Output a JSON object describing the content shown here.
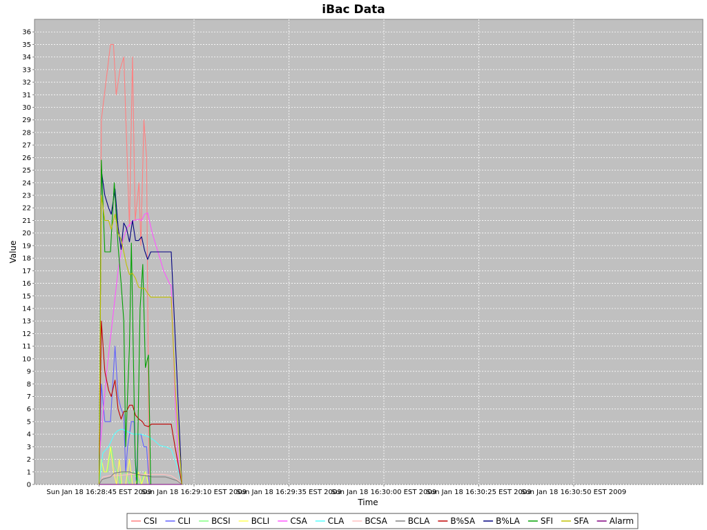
{
  "chart_data": {
    "type": "line",
    "title": "iBac Data",
    "xlabel": "Time",
    "ylabel": "Value",
    "ylim": [
      0,
      37
    ],
    "yticks": [
      0,
      1,
      2,
      3,
      4,
      5,
      6,
      7,
      8,
      9,
      10,
      11,
      12,
      13,
      14,
      15,
      16,
      17,
      18,
      19,
      20,
      21,
      22,
      23,
      24,
      25,
      26,
      27,
      28,
      29,
      30,
      31,
      32,
      33,
      34,
      35,
      36
    ],
    "xlim_seconds": [
      -17,
      159
    ],
    "xticks": [
      {
        "t": 0,
        "label": "Sun Jan 18 16:28:45 EST 2009"
      },
      {
        "t": 25,
        "label": "Sun Jan 18 16:29:10 EST 2009"
      },
      {
        "t": 50,
        "label": "Sun Jan 18 16:29:35 EST 2009"
      },
      {
        "t": 75,
        "label": "Sun Jan 18 16:30:00 EST 2009"
      },
      {
        "t": 100,
        "label": "Sun Jan 18 16:30:25 EST 2009"
      },
      {
        "t": 125,
        "label": "Sun Jan 18 16:30:50 EST 2009"
      }
    ],
    "grid": true,
    "legend_position": "bottom",
    "series": [
      {
        "name": "CSI",
        "color": "#ff8080",
        "points": [
          [
            0,
            0
          ],
          [
            0.6,
            29
          ],
          [
            3,
            35
          ],
          [
            3.8,
            35
          ],
          [
            4.5,
            31
          ],
          [
            5.5,
            33
          ],
          [
            6.5,
            34
          ],
          [
            8,
            20.5
          ],
          [
            8.8,
            34
          ],
          [
            9.5,
            21
          ],
          [
            10.5,
            24
          ],
          [
            11,
            19
          ],
          [
            11.8,
            29
          ],
          [
            12.5,
            26
          ],
          [
            13.2,
            0
          ]
        ]
      },
      {
        "name": "CLI",
        "color": "#6060ff",
        "points": [
          [
            0,
            0
          ],
          [
            0.6,
            8
          ],
          [
            1.5,
            5
          ],
          [
            3,
            5
          ],
          [
            4.2,
            11
          ],
          [
            5,
            7
          ],
          [
            5.8,
            6
          ],
          [
            6.5,
            5.5
          ],
          [
            7,
            1
          ],
          [
            7.5,
            3
          ],
          [
            8.5,
            5
          ],
          [
            9.2,
            5
          ],
          [
            9.8,
            0
          ],
          [
            10.3,
            4
          ],
          [
            11,
            4
          ],
          [
            11.8,
            3
          ],
          [
            12.5,
            3
          ],
          [
            13.2,
            0
          ]
        ]
      },
      {
        "name": "BCSI",
        "color": "#80ff80",
        "points": [
          [
            0,
            0
          ],
          [
            0.6,
            2
          ],
          [
            1.2,
            1
          ],
          [
            2.2,
            1
          ],
          [
            3.2,
            3
          ],
          [
            4,
            1.5
          ],
          [
            4.8,
            1
          ],
          [
            5.5,
            0
          ],
          [
            6.2,
            1
          ],
          [
            7,
            1
          ],
          [
            8,
            0
          ],
          [
            9,
            1
          ],
          [
            10,
            0.5
          ],
          [
            11,
            0
          ],
          [
            12,
            1
          ],
          [
            13,
            0
          ]
        ]
      },
      {
        "name": "BCLI",
        "color": "#ffff55",
        "points": [
          [
            0,
            0
          ],
          [
            0.6,
            2
          ],
          [
            1.3,
            1
          ],
          [
            2,
            1
          ],
          [
            3,
            3
          ],
          [
            3.8,
            1
          ],
          [
            4.6,
            0
          ],
          [
            5.3,
            2
          ],
          [
            6,
            0
          ],
          [
            7,
            0
          ],
          [
            8,
            2
          ],
          [
            8.8,
            0
          ],
          [
            9.6,
            0
          ],
          [
            10.4,
            1
          ],
          [
            11.2,
            0
          ],
          [
            12.2,
            1
          ],
          [
            13,
            0
          ]
        ]
      },
      {
        "name": "CSA",
        "color": "#ff55ff",
        "points": [
          [
            0,
            2
          ],
          [
            2,
            9
          ],
          [
            3.5,
            13
          ],
          [
            5,
            17
          ],
          [
            6.3,
            19.5
          ],
          [
            7.5,
            20.5
          ],
          [
            9,
            21
          ],
          [
            10.5,
            21.1
          ],
          [
            11.2,
            21
          ],
          [
            12,
            21.5
          ],
          [
            12.8,
            21.6
          ],
          [
            14,
            20
          ],
          [
            15.5,
            18.5
          ],
          [
            17,
            17
          ],
          [
            18.5,
            16
          ],
          [
            19,
            15.8
          ],
          [
            20,
            7
          ],
          [
            21,
            1
          ],
          [
            21.8,
            0
          ]
        ]
      },
      {
        "name": "CLA",
        "color": "#55ffff",
        "points": [
          [
            0,
            0
          ],
          [
            1,
            2.5
          ],
          [
            2.5,
            3
          ],
          [
            4,
            4
          ],
          [
            5,
            4.3
          ],
          [
            6,
            4.4
          ],
          [
            7.5,
            4.2
          ],
          [
            9,
            4
          ],
          [
            11,
            4
          ],
          [
            13,
            3.8
          ],
          [
            14.5,
            3.5
          ],
          [
            16,
            3.1
          ],
          [
            17.5,
            3
          ],
          [
            19,
            2.8
          ],
          [
            20.5,
            1.5
          ],
          [
            21.8,
            0
          ]
        ]
      },
      {
        "name": "BCSA",
        "color": "#ffc0c0",
        "points": [
          [
            0,
            0
          ],
          [
            1,
            0.6
          ],
          [
            3,
            0.7
          ],
          [
            5,
            0.7
          ],
          [
            8,
            0.8
          ],
          [
            11,
            0.8
          ],
          [
            14,
            0.8
          ],
          [
            17,
            0.8
          ],
          [
            19,
            0.7
          ],
          [
            20.5,
            0.4
          ],
          [
            21.8,
            0
          ]
        ]
      },
      {
        "name": "BCLA",
        "color": "#808080",
        "points": [
          [
            0,
            0
          ],
          [
            0.8,
            0.4
          ],
          [
            2,
            0.5
          ],
          [
            3,
            0.6
          ],
          [
            4,
            0.9
          ],
          [
            6,
            1
          ],
          [
            8,
            1
          ],
          [
            10,
            0.8
          ],
          [
            12,
            0.7
          ],
          [
            14,
            0.6
          ],
          [
            16,
            0.6
          ],
          [
            17.5,
            0.6
          ],
          [
            18.5,
            0.5
          ],
          [
            19.5,
            0.4
          ],
          [
            20.5,
            0.3
          ],
          [
            21.8,
            0
          ]
        ]
      },
      {
        "name": "B%SA",
        "color": "#c00000",
        "points": [
          [
            0,
            0
          ],
          [
            0.6,
            13
          ],
          [
            1.5,
            9
          ],
          [
            2.5,
            7.5
          ],
          [
            3.2,
            7
          ],
          [
            4.2,
            8.3
          ],
          [
            5,
            6
          ],
          [
            5.8,
            5.2
          ],
          [
            6.5,
            5.8
          ],
          [
            7.2,
            5.8
          ],
          [
            8,
            6.3
          ],
          [
            8.8,
            6.3
          ],
          [
            9.6,
            5.5
          ],
          [
            10.5,
            5.2
          ],
          [
            11.4,
            5
          ],
          [
            12,
            4.7
          ],
          [
            13,
            4.6
          ],
          [
            13.8,
            4.8
          ],
          [
            16,
            4.8
          ],
          [
            18,
            4.8
          ],
          [
            19,
            4.8
          ],
          [
            20,
            3
          ],
          [
            21.8,
            0
          ]
        ]
      },
      {
        "name": "B%LA",
        "color": "#000080",
        "points": [
          [
            0,
            0
          ],
          [
            0.6,
            25
          ],
          [
            1.5,
            23
          ],
          [
            2.5,
            22
          ],
          [
            3.2,
            21.5
          ],
          [
            4.2,
            23.5
          ],
          [
            5,
            20.5
          ],
          [
            5.8,
            18.7
          ],
          [
            6.5,
            20.8
          ],
          [
            7.2,
            20.4
          ],
          [
            8,
            19.3
          ],
          [
            8.8,
            21
          ],
          [
            9.6,
            19.4
          ],
          [
            10.4,
            19.4
          ],
          [
            11.2,
            19.7
          ],
          [
            12,
            18.6
          ],
          [
            12.8,
            17.9
          ],
          [
            13.6,
            18.5
          ],
          [
            16,
            18.5
          ],
          [
            18,
            18.5
          ],
          [
            19,
            18.5
          ],
          [
            20,
            12
          ],
          [
            21.8,
            0
          ]
        ]
      },
      {
        "name": "SFI",
        "color": "#00a000",
        "points": [
          [
            0,
            0
          ],
          [
            0.6,
            25.8
          ],
          [
            1.5,
            18.5
          ],
          [
            2.5,
            18.5
          ],
          [
            3,
            18.5
          ],
          [
            4,
            24
          ],
          [
            5,
            19
          ],
          [
            5.8,
            16
          ],
          [
            6.5,
            13
          ],
          [
            7,
            3
          ],
          [
            8,
            11
          ],
          [
            8.5,
            19.2
          ],
          [
            9.5,
            2
          ],
          [
            10,
            0
          ],
          [
            10.8,
            14
          ],
          [
            11.5,
            17.5
          ],
          [
            12.2,
            9.3
          ],
          [
            13,
            10.3
          ],
          [
            13.6,
            0
          ]
        ]
      },
      {
        "name": "SFA",
        "color": "#c0c000",
        "points": [
          [
            0,
            0
          ],
          [
            0.6,
            23
          ],
          [
            1.5,
            21
          ],
          [
            2.5,
            21
          ],
          [
            3.2,
            20.3
          ],
          [
            4.2,
            21.5
          ],
          [
            5,
            20
          ],
          [
            5.8,
            19.5
          ],
          [
            6.5,
            18.5
          ],
          [
            7.2,
            17.5
          ],
          [
            8,
            16.7
          ],
          [
            8.8,
            16.8
          ],
          [
            9.6,
            16.4
          ],
          [
            10.4,
            15.7
          ],
          [
            11.2,
            15.6
          ],
          [
            12,
            15.6
          ],
          [
            12.8,
            15.2
          ],
          [
            13.6,
            14.9
          ],
          [
            16,
            14.9
          ],
          [
            18,
            14.9
          ],
          [
            19,
            14.9
          ],
          [
            20,
            8
          ],
          [
            21.8,
            0
          ]
        ]
      },
      {
        "name": "Alarm",
        "color": "#800080",
        "points": [
          [
            0,
            0
          ],
          [
            21.8,
            0
          ]
        ]
      }
    ]
  }
}
